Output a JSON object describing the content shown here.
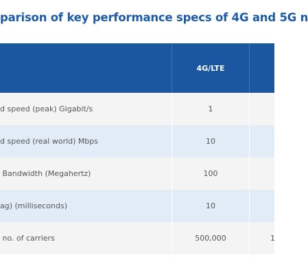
{
  "title": "parison of key performance specs of 4G and 5G n",
  "table": {
    "header": [
      "4G/LTE"
    ],
    "rows": [
      [
        "d speed (peak) Gigabit/s",
        "1"
      ],
      [
        "d speed (real world) Mbps",
        "10"
      ],
      [
        " Bandwidth (Megahertz)",
        "100"
      ],
      [
        "ag) (milliseconds)",
        "10"
      ],
      [
        " no. of carriers",
        "500,000",
        "1"
      ]
    ]
  }
}
